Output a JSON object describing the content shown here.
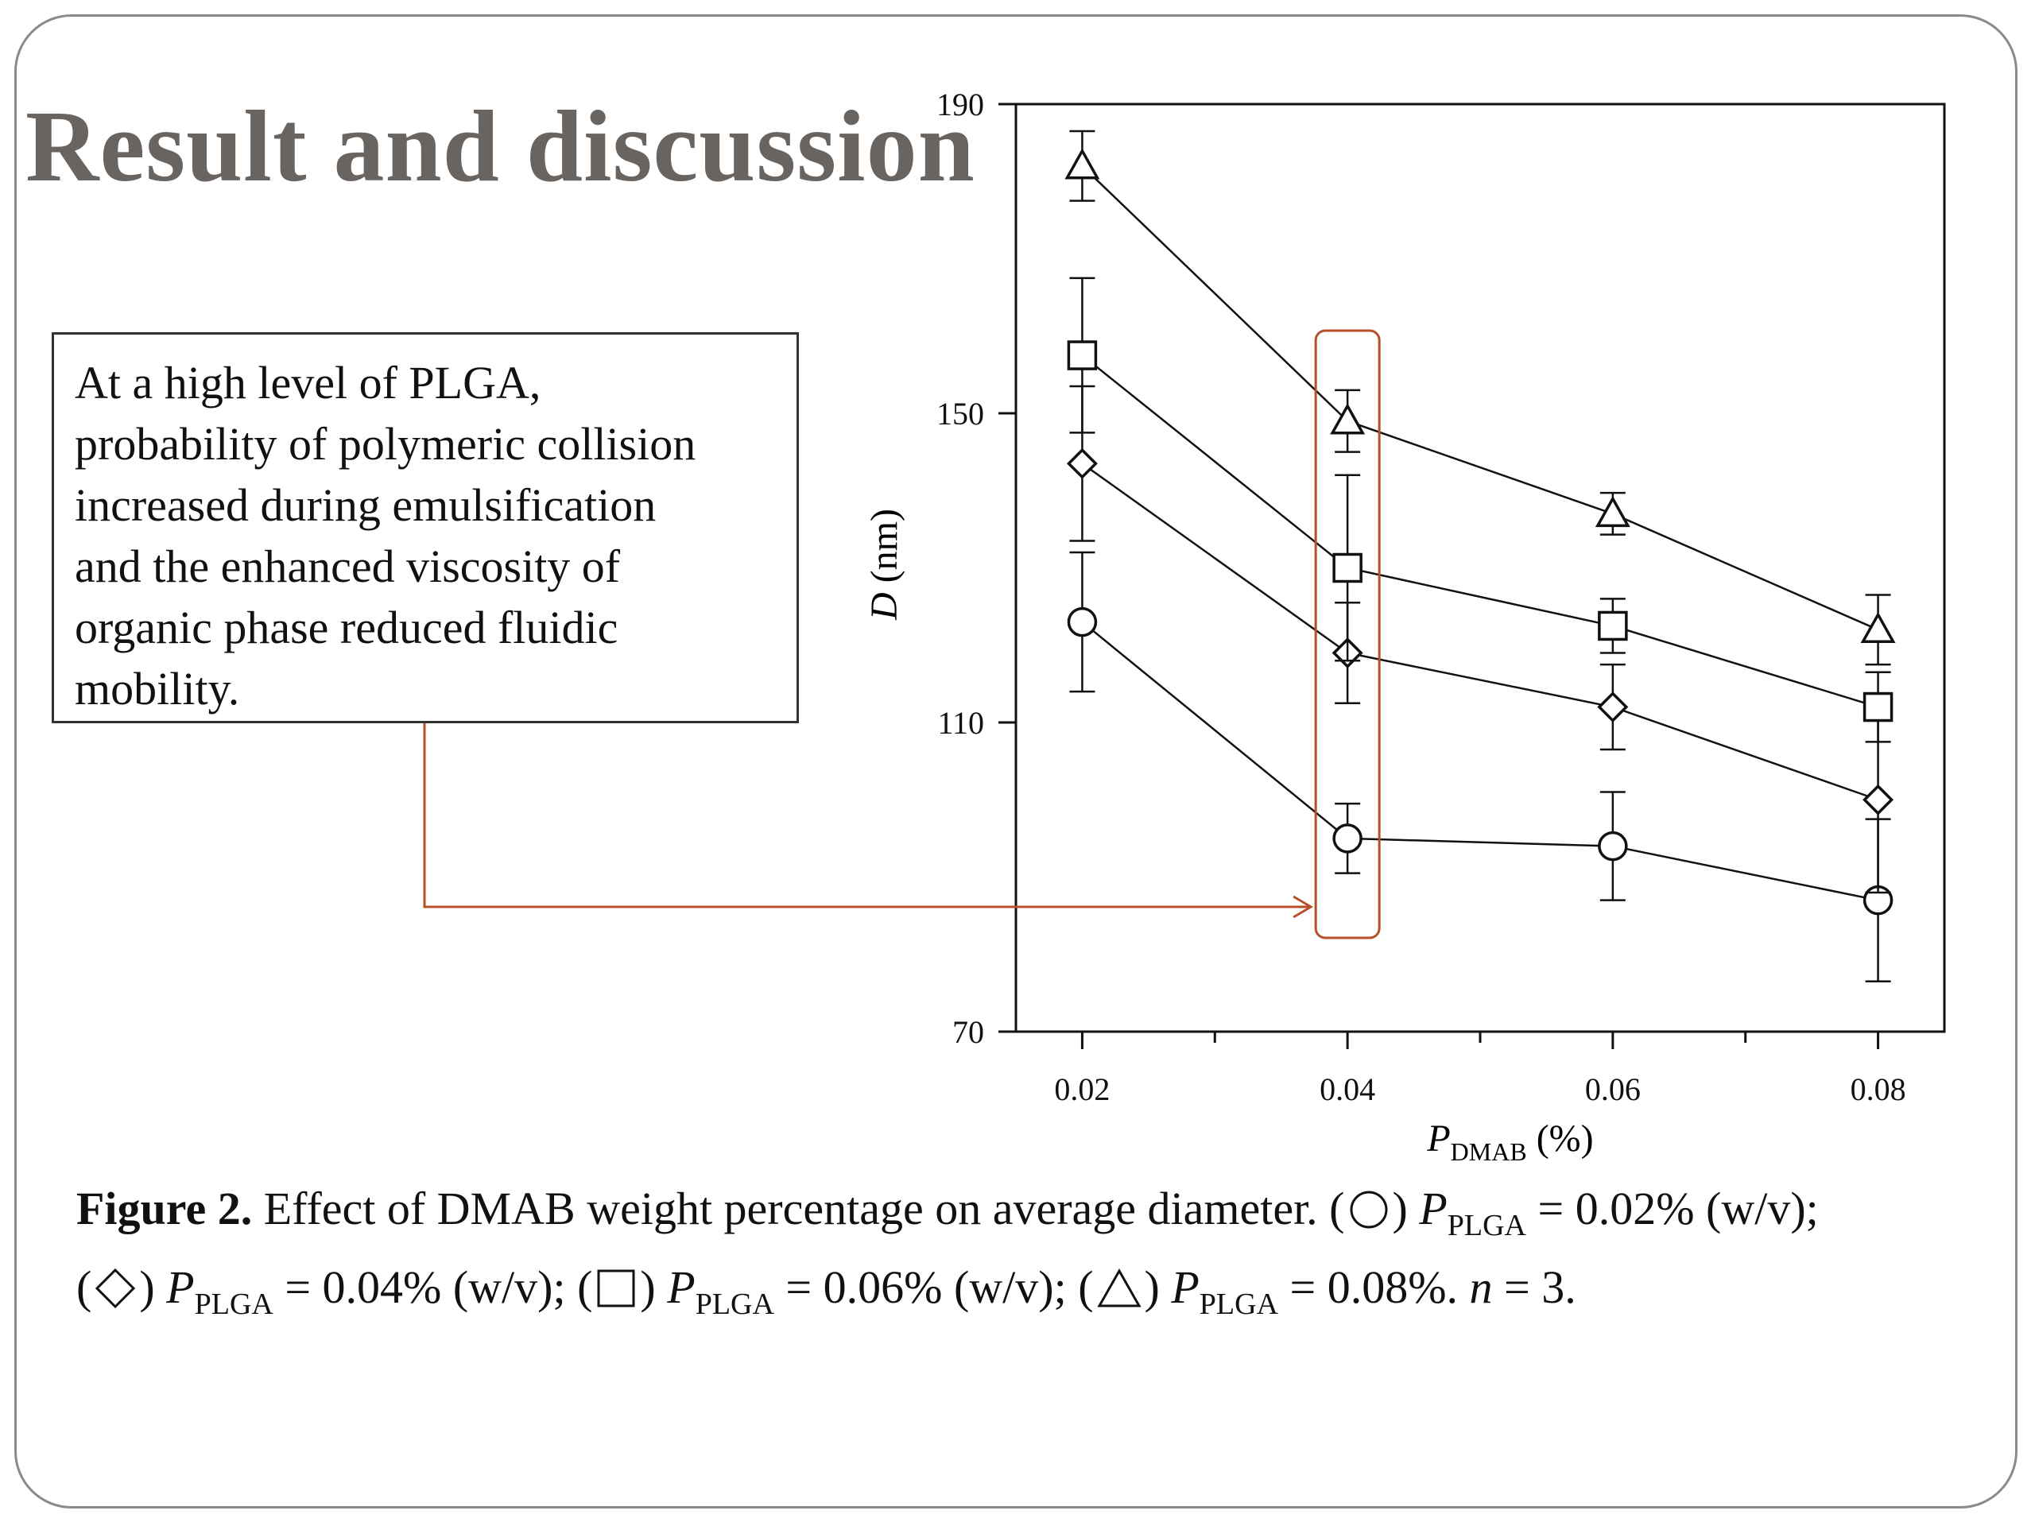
{
  "slide": {
    "title": "Result and discussion",
    "note_lines": [
      "At a high level of PLGA,",
      "probability of polymeric collision",
      "increased during emulsification",
      "and the enhanced viscosity of",
      "organic phase reduced fluidic",
      "mobility."
    ],
    "highlight_color": "#b5502a",
    "caption": {
      "label": "Figure 2.",
      "text": " Effect of DMAB weight percentage on average diameter. (",
      "p": "P",
      "plga": "PLGA",
      "eq1": " = 0.02% (w/v);",
      "eq2": " = 0.04% (w/v); (",
      "eq3": " = 0.06% (w/v); (",
      "eq4": " = 0.08%. ",
      "n_var": "n",
      "n_val": " = 3.",
      "open": "(",
      "close": ") "
    }
  },
  "chart_data": {
    "type": "line",
    "xlabel_main": "P",
    "xlabel_sub": "DMAB",
    "xlabel_unit": " (%)",
    "ylabel_var": "D",
    "ylabel_unit": " (nm)",
    "x": [
      0.02,
      0.04,
      0.06,
      0.08
    ],
    "x_ticks": [
      "0.02",
      "0.04",
      "0.06",
      "0.08"
    ],
    "y_ticks": [
      "70",
      "110",
      "150",
      "190"
    ],
    "xlim": [
      0.015,
      0.085
    ],
    "ylim": [
      70,
      190
    ],
    "grid": false,
    "highlight_x": 0.04,
    "series": [
      {
        "marker": "circle",
        "values": [
          123,
          95,
          94,
          87
        ],
        "errors": [
          9,
          4.5,
          7,
          10.5
        ]
      },
      {
        "marker": "diamond",
        "values": [
          143.5,
          119,
          112,
          100
        ],
        "errors": [
          10,
          6.5,
          5.5,
          12
        ]
      },
      {
        "marker": "square",
        "values": [
          157.5,
          130,
          122.5,
          112
        ],
        "errors": [
          10,
          12,
          3.5,
          4.5
        ]
      },
      {
        "marker": "triangle",
        "values": [
          182,
          149,
          137,
          122
        ],
        "errors": [
          4.5,
          4,
          2.7,
          4.5
        ]
      }
    ]
  }
}
